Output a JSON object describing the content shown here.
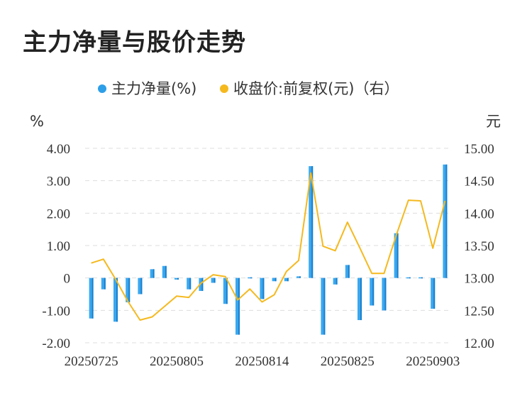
{
  "title": "主力净量与股价走势",
  "chart_data": {
    "type": "bar+line",
    "legend": [
      {
        "name": "主力净量(%)",
        "color": "#2d9ee8"
      },
      {
        "name": "收盘价:前复权(元)（右）",
        "color": "#f5b91e"
      }
    ],
    "left_unit": "%",
    "right_unit": "元",
    "y_left": {
      "min": -2,
      "max": 4,
      "ticks": [
        "4.00",
        "3.00",
        "2.00",
        "1.00",
        "0",
        "-1.00",
        "-2.00"
      ]
    },
    "y_right": {
      "min": 12,
      "max": 15,
      "ticks": [
        "15.00",
        "14.50",
        "14.00",
        "13.50",
        "13.00",
        "12.50",
        "12.00"
      ]
    },
    "x_labels": [
      "20250725",
      "20250805",
      "20250814",
      "20250825",
      "20250903"
    ],
    "x_label_positions": [
      0,
      7,
      14,
      21,
      28
    ],
    "series": [
      {
        "name": "主力净量(%)",
        "kind": "bar",
        "values": [
          -1.25,
          -0.35,
          -1.35,
          -0.75,
          -0.5,
          0.27,
          0.37,
          -0.05,
          -0.35,
          -0.4,
          -0.15,
          -0.8,
          -1.75,
          0.02,
          -0.65,
          -0.1,
          -0.1,
          0.05,
          3.45,
          -1.75,
          -0.2,
          0.4,
          -1.3,
          -0.85,
          -1.0,
          1.38,
          0.02,
          0.02,
          -0.95,
          3.5
        ]
      },
      {
        "name": "收盘价:前复权(元)（右）",
        "kind": "line",
        "values": [
          13.23,
          13.29,
          12.98,
          12.64,
          12.35,
          12.4,
          12.56,
          12.72,
          12.7,
          12.92,
          13.05,
          13.02,
          12.66,
          12.83,
          12.63,
          12.74,
          13.1,
          13.27,
          14.62,
          13.49,
          13.42,
          13.86,
          13.47,
          13.07,
          13.07,
          13.66,
          14.2,
          14.19,
          13.46,
          14.19
        ]
      }
    ]
  }
}
